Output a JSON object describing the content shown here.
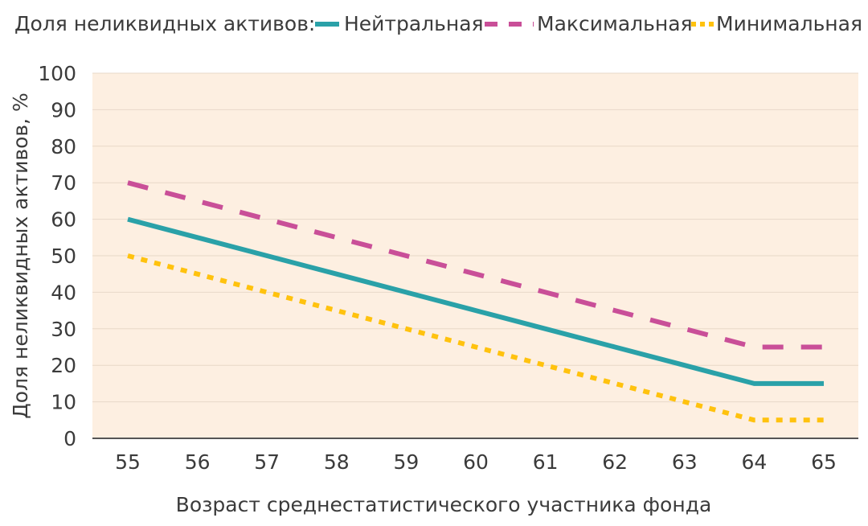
{
  "legend": {
    "title": "Доля неликвидных активов:",
    "items": [
      {
        "label": "Нейтральная"
      },
      {
        "label": "Максимальная"
      },
      {
        "label": "Минимальная"
      }
    ]
  },
  "colors": {
    "neutral": "#2aa1a8",
    "max": "#c94f98",
    "min": "#ffc20e",
    "plot_bg": "#fdefe1",
    "grid": "#e8d8c8",
    "axis": "#555555"
  },
  "chart_data": {
    "type": "line",
    "x": [
      55,
      56,
      57,
      58,
      59,
      60,
      61,
      62,
      63,
      64,
      65
    ],
    "series": [
      {
        "name": "Нейтральная",
        "style": "solid",
        "values": [
          60,
          55,
          50,
          45,
          40,
          35,
          30,
          25,
          20,
          15,
          15
        ]
      },
      {
        "name": "Максимальная",
        "style": "dashed",
        "values": [
          70,
          65,
          60,
          55,
          50,
          45,
          40,
          35,
          30,
          25,
          25
        ]
      },
      {
        "name": "Минимальная",
        "style": "dotted",
        "values": [
          50,
          45,
          40,
          35,
          30,
          25,
          20,
          15,
          10,
          5,
          5
        ]
      }
    ],
    "xlabel": "Возраст среднестатистического участника фонда",
    "ylabel": "Доля неликвидных активов, %",
    "ylim": [
      0,
      100
    ],
    "yticks": [
      0,
      10,
      20,
      30,
      40,
      50,
      60,
      70,
      80,
      90,
      100
    ],
    "grid": true,
    "legend_position": "top"
  }
}
